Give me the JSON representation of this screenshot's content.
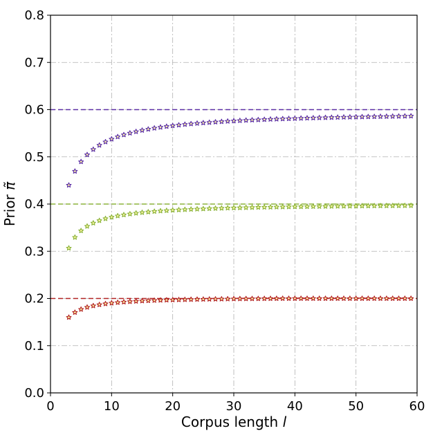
{
  "chart_data": {
    "type": "scatter",
    "title": "",
    "xlabel_prefix": "Corpus length ",
    "xlabel_var": "l",
    "ylabel_prefix": "Prior ",
    "ylabel_var": "π̃",
    "xlim": [
      0,
      60
    ],
    "ylim": [
      0.0,
      0.8
    ],
    "xticks": [
      "0",
      "10",
      "20",
      "30",
      "40",
      "50",
      "60"
    ],
    "yticks": [
      "0.0",
      "0.1",
      "0.2",
      "0.3",
      "0.4",
      "0.5",
      "0.6",
      "0.7",
      "0.8"
    ],
    "grid": true,
    "marker": "star",
    "x": [
      3,
      4,
      5,
      6,
      7,
      8,
      9,
      10,
      11,
      12,
      13,
      14,
      15,
      16,
      17,
      18,
      19,
      20,
      21,
      22,
      23,
      24,
      25,
      26,
      27,
      28,
      29,
      30,
      31,
      32,
      33,
      34,
      35,
      36,
      37,
      38,
      39,
      40,
      41,
      42,
      43,
      44,
      45,
      46,
      47,
      48,
      49,
      50,
      51,
      52,
      53,
      54,
      55,
      56,
      57,
      58,
      59
    ],
    "series": [
      {
        "color": "#5b2ea6",
        "reference": 0.6,
        "values": [
          0.44,
          0.4695,
          0.4897,
          0.5045,
          0.5157,
          0.5246,
          0.5317,
          0.5376,
          0.5425,
          0.5467,
          0.5503,
          0.5534,
          0.5562,
          0.5586,
          0.5608,
          0.5627,
          0.5644,
          0.566,
          0.5674,
          0.5687,
          0.5699,
          0.571,
          0.572,
          0.5729,
          0.5738,
          0.5746,
          0.5754,
          0.5761,
          0.5768,
          0.5774,
          0.578,
          0.5785,
          0.5791,
          0.5796,
          0.58,
          0.5805,
          0.5809,
          0.5813,
          0.5817,
          0.5821,
          0.5824,
          0.5828,
          0.5831,
          0.5834,
          0.5837,
          0.584,
          0.5842,
          0.5845,
          0.5847,
          0.585,
          0.5852,
          0.5854,
          0.5856,
          0.5858,
          0.586,
          0.5862,
          0.5864
        ]
      },
      {
        "color": "#8bb33a",
        "reference": 0.4,
        "values": [
          0.3067,
          0.3295,
          0.3435,
          0.353,
          0.3598,
          0.365,
          0.3691,
          0.3723,
          0.375,
          0.3772,
          0.3791,
          0.3807,
          0.3821,
          0.3833,
          0.3844,
          0.3854,
          0.3862,
          0.387,
          0.3877,
          0.3883,
          0.3889,
          0.3894,
          0.3899,
          0.3904,
          0.3908,
          0.3912,
          0.3916,
          0.3919,
          0.3922,
          0.3925,
          0.3928,
          0.3931,
          0.3933,
          0.3935,
          0.3938,
          0.394,
          0.3942,
          0.3944,
          0.3945,
          0.3947,
          0.3949,
          0.395,
          0.3952,
          0.3953,
          0.3955,
          0.3956,
          0.3957,
          0.3958,
          0.396,
          0.3961,
          0.3962,
          0.3963,
          0.3964,
          0.3965,
          0.3966,
          0.3967,
          0.3968
        ]
      },
      {
        "color": "#b22222",
        "reference": 0.2,
        "values": [
          0.16,
          0.1705,
          0.177,
          0.1814,
          0.1845,
          0.1869,
          0.1888,
          0.1903,
          0.1915,
          0.1925,
          0.1934,
          0.1941,
          0.1948,
          0.1954,
          0.1959,
          0.1963,
          0.1967,
          0.197,
          0.1973,
          0.1976,
          0.1979,
          0.1981,
          0.1983,
          0.1985,
          0.1987,
          0.1989,
          0.199,
          0.1992,
          0.1993,
          0.1994,
          0.1995,
          0.1996,
          0.1997,
          0.1998,
          0.1999,
          0.2,
          0.2,
          0.2,
          0.2,
          0.2,
          0.2,
          0.2,
          0.2,
          0.2,
          0.2,
          0.2,
          0.2,
          0.2,
          0.2,
          0.2,
          0.2,
          0.2,
          0.2,
          0.2,
          0.2,
          0.2,
          0.2
        ]
      }
    ]
  }
}
